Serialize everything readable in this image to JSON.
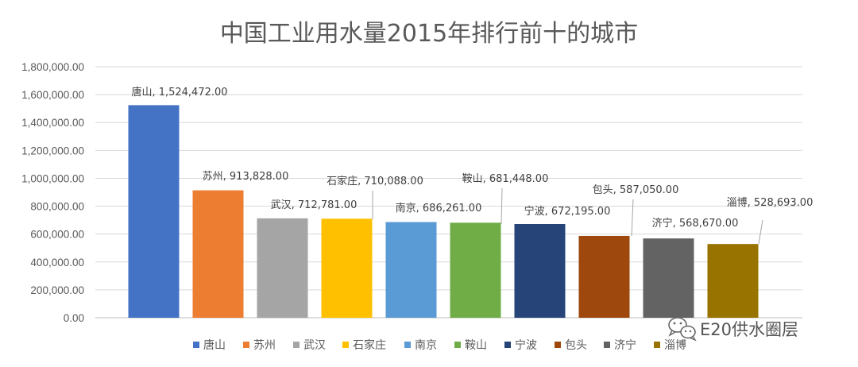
{
  "chart_data": {
    "type": "bar",
    "title": "中国工业用水量2015年排行前十的城市",
    "categories": [
      "唐山",
      "苏州",
      "武汉",
      "石家庄",
      "南京",
      "鞍山",
      "宁波",
      "包头",
      "济宁",
      "淄博"
    ],
    "values": [
      1524472.0,
      913828.0,
      712781.0,
      710088.0,
      686261.0,
      681448.0,
      672195.0,
      587050.0,
      568670.0,
      528693.0
    ],
    "data_labels": [
      "唐山, 1,524,472.00",
      "苏州, 913,828.00",
      "武汉, 712,781.00",
      "石家庄, 710,088.00",
      "南京, 686,261.00",
      "鞍山, 681,448.00",
      "宁波, 672,195.00",
      "包头, 587,050.00",
      "济宁, 568,670.00",
      "淄博, 528,693.00"
    ],
    "colors": [
      "#4472c4",
      "#ed7d31",
      "#a5a5a5",
      "#ffc000",
      "#5b9bd5",
      "#70ad47",
      "#264478",
      "#9e480e",
      "#636363",
      "#997300"
    ],
    "ylim": [
      0,
      1800000
    ],
    "yticks": [
      0,
      200000,
      400000,
      600000,
      800000,
      1000000,
      1200000,
      1400000,
      1600000,
      1800000
    ],
    "ytick_labels": [
      "0.00",
      "200,000.00",
      "400,000.00",
      "600,000.00",
      "800,000.00",
      "1,000,000.00",
      "1,200,000.00",
      "1,400,000.00",
      "1,600,000.00",
      "1,800,000.00"
    ],
    "grid": true,
    "legend": {
      "position": "bottom",
      "entries": [
        "唐山",
        "苏州",
        "武汉",
        "石家庄",
        "南京",
        "鞍山",
        "宁波",
        "包头",
        "济宁",
        "淄博"
      ]
    }
  },
  "watermark": {
    "text": "E20供水圈层",
    "icon": "wechat-icon"
  }
}
